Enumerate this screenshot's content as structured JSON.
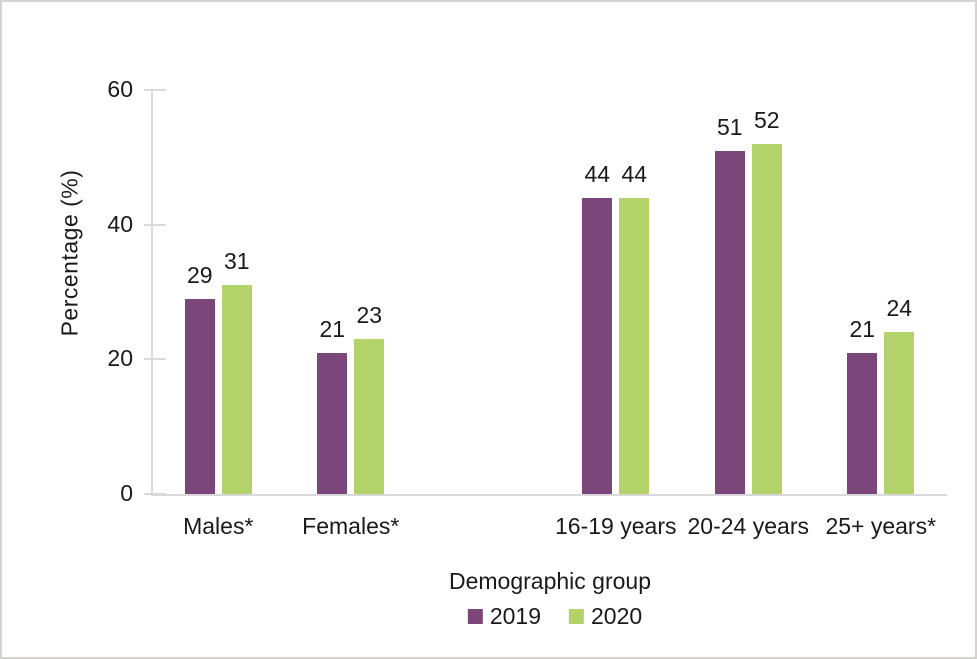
{
  "chart_data": {
    "type": "bar",
    "title": "",
    "xlabel": "Demographic group",
    "ylabel": "Percentage (%)",
    "ylim": [
      0,
      60
    ],
    "y_ticks": [
      0,
      20,
      40,
      60
    ],
    "categories": [
      "Males*",
      "Females*",
      "16-19 years",
      "20-24 years",
      "25+ years*"
    ],
    "category_slots": [
      0,
      1,
      3,
      4,
      5
    ],
    "n_slots": 6,
    "grid": false,
    "data_labels": true,
    "legend_position": "bottom-center",
    "series": [
      {
        "name": "2019",
        "color": "#7b4679",
        "values": [
          29,
          21,
          44,
          51,
          21
        ]
      },
      {
        "name": "2020",
        "color": "#b4d26a",
        "values": [
          31,
          23,
          44,
          52,
          24
        ]
      }
    ],
    "axis_color": "#d9d9d9",
    "text_color": "#1a1a1a",
    "background_color": "#ffffff",
    "border_color": "#d5d2d2"
  }
}
